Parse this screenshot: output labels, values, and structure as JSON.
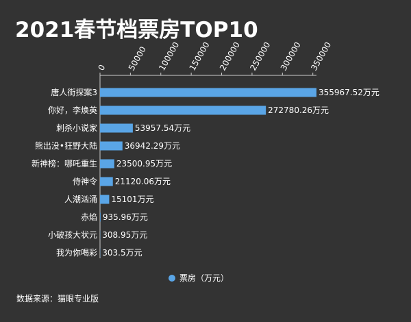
{
  "title": "2021春节档票房TOP10",
  "source": "数据来源：猫眼专业版",
  "chart_data": {
    "type": "bar",
    "orientation": "horizontal",
    "title": "2021春节档票房TOP10",
    "categories": [
      "唐人街探案3",
      "你好，李焕英",
      "刺杀小说家",
      "熊出没•狂野大陆",
      "新神榜：哪吒重生",
      "侍神令",
      "人潮汹涌",
      "赤焰",
      "小破孩大状元",
      "我为你喝彩"
    ],
    "values": [
      355967.52,
      272780.26,
      53957.54,
      36942.29,
      23500.95,
      21120.06,
      15101,
      935.96,
      308.95,
      303.5
    ],
    "value_labels": [
      "355967.52万元",
      "272780.26万元",
      "53957.54万元",
      "36942.29万元",
      "23500.95万元",
      "21120.06万元",
      "15101万元",
      "935.96万元",
      "308.95万元",
      "303.5万元"
    ],
    "series": [
      {
        "name": "票房（万元）",
        "values": [
          355967.52,
          272780.26,
          53957.54,
          36942.29,
          23500.95,
          21120.06,
          15101,
          935.96,
          308.95,
          303.5
        ]
      }
    ],
    "ticks": [
      0,
      50000,
      100000,
      150000,
      200000,
      250000,
      300000,
      350000
    ],
    "tick_labels": [
      "0",
      "50000",
      "100000",
      "150000",
      "200000",
      "250000",
      "300000",
      "350000"
    ],
    "xlim": [
      0,
      355967.52
    ],
    "axis_position": "top",
    "grid": false,
    "legend": "bottom",
    "bar_color": "#5aa5e6"
  }
}
